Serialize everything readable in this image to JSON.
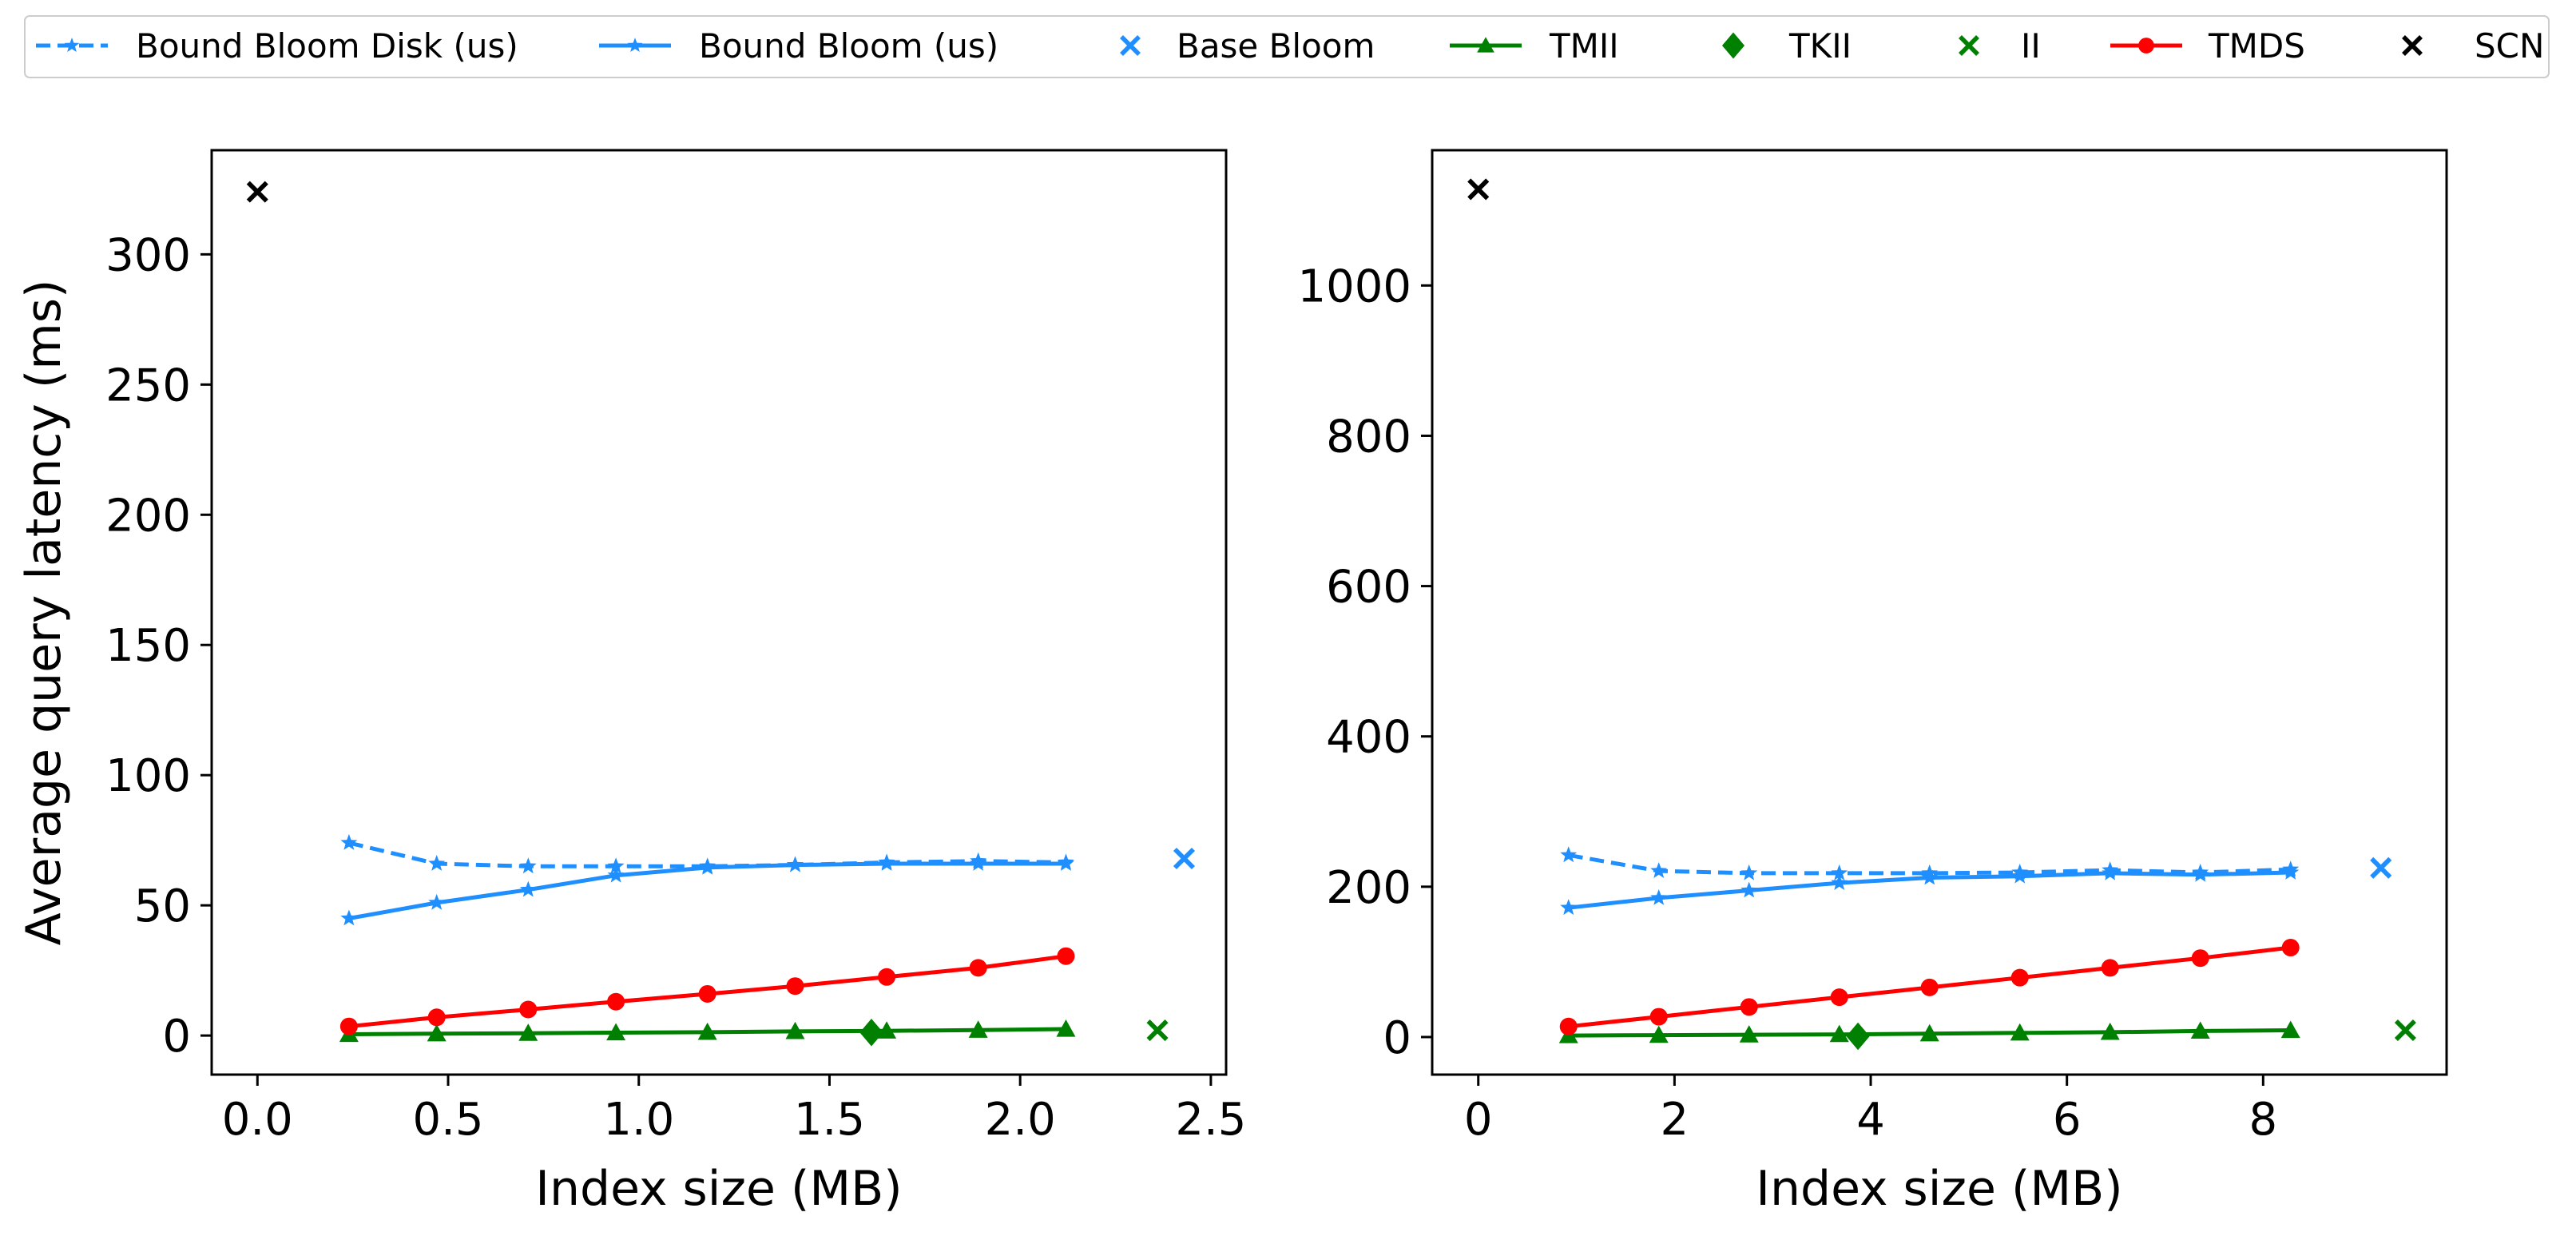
{
  "legend": [
    {
      "label": "Bound Bloom Disk (us)",
      "color": "#1f8fff",
      "dash": true,
      "marker": "star"
    },
    {
      "label": "Bound Bloom (us)",
      "color": "#1f8fff",
      "dash": false,
      "marker": "star"
    },
    {
      "label": "Base Bloom",
      "color": "#1f8fff",
      "dash": null,
      "marker": "x"
    },
    {
      "label": "TMII",
      "color": "#008000",
      "dash": false,
      "marker": "triangle"
    },
    {
      "label": "TKII",
      "color": "#008000",
      "dash": null,
      "marker": "diamond"
    },
    {
      "label": "II",
      "color": "#008000",
      "dash": null,
      "marker": "x"
    },
    {
      "label": "TMDS",
      "color": "#ff0000",
      "dash": false,
      "marker": "circle"
    },
    {
      "label": "SCN",
      "color": "#000000",
      "dash": null,
      "marker": "x"
    }
  ],
  "chart_data": [
    {
      "type": "line",
      "xlabel": "Index size (MB)",
      "ylabel": "Average query latency (ms)",
      "xlim": [
        -0.12,
        2.54
      ],
      "ylim": [
        -15,
        340
      ],
      "xticks": [
        0.0,
        0.5,
        1.0,
        1.5,
        2.0,
        2.5
      ],
      "xtick_labels": [
        "0.0",
        "0.5",
        "1.0",
        "1.5",
        "2.0",
        "2.5"
      ],
      "yticks": [
        0,
        50,
        100,
        150,
        200,
        250,
        300
      ],
      "ytick_labels": [
        "0",
        "50",
        "100",
        "150",
        "200",
        "250",
        "300"
      ],
      "series": [
        {
          "name": "Bound Bloom Disk (us)",
          "style": "dashed",
          "marker": "star",
          "color": "#1f8fff",
          "x": [
            0.24,
            0.47,
            0.71,
            0.94,
            1.18,
            1.41,
            1.65,
            1.89,
            2.12
          ],
          "y": [
            74,
            66,
            65,
            65,
            65,
            65.5,
            66.5,
            67,
            66.5
          ]
        },
        {
          "name": "Bound Bloom (us)",
          "style": "solid",
          "marker": "star",
          "color": "#1f8fff",
          "x": [
            0.24,
            0.47,
            0.71,
            0.94,
            1.18,
            1.41,
            1.65,
            1.89,
            2.12
          ],
          "y": [
            45,
            51,
            56,
            61.5,
            64.5,
            65.5,
            66,
            66,
            66
          ]
        },
        {
          "name": "Base Bloom",
          "style": "none",
          "marker": "x",
          "color": "#1f8fff",
          "x": [
            2.43
          ],
          "y": [
            68
          ]
        },
        {
          "name": "TMII",
          "style": "solid",
          "marker": "triangle",
          "color": "#008000",
          "x": [
            0.24,
            0.47,
            0.71,
            0.94,
            1.18,
            1.41,
            1.65,
            1.89,
            2.12
          ],
          "y": [
            0.5,
            0.7,
            0.9,
            1.1,
            1.3,
            1.6,
            1.8,
            2.1,
            2.5
          ]
        },
        {
          "name": "TKII",
          "style": "none",
          "marker": "diamond",
          "color": "#008000",
          "x": [
            1.61
          ],
          "y": [
            1.2
          ]
        },
        {
          "name": "II",
          "style": "none",
          "marker": "x",
          "color": "#008000",
          "x": [
            2.36
          ],
          "y": [
            2
          ]
        },
        {
          "name": "TMDS",
          "style": "solid",
          "marker": "circle",
          "color": "#ff0000",
          "x": [
            0.24,
            0.47,
            0.71,
            0.94,
            1.18,
            1.41,
            1.65,
            1.89,
            2.12
          ],
          "y": [
            3.5,
            7,
            10,
            13,
            16,
            19,
            22.5,
            26,
            30.5
          ]
        },
        {
          "name": "SCN",
          "style": "none",
          "marker": "x",
          "color": "#000000",
          "x": [
            0.0
          ],
          "y": [
            324
          ]
        }
      ]
    },
    {
      "type": "line",
      "xlabel": "Index size (MB)",
      "ylabel": "",
      "xlim": [
        -0.47,
        9.87
      ],
      "ylim": [
        -50,
        1180
      ],
      "xticks": [
        0,
        2,
        4,
        6,
        8
      ],
      "xtick_labels": [
        "0",
        "2",
        "4",
        "6",
        "8"
      ],
      "yticks": [
        0,
        200,
        400,
        600,
        800,
        1000
      ],
      "ytick_labels": [
        "0",
        "200",
        "400",
        "600",
        "800",
        "1000"
      ],
      "series": [
        {
          "name": "Bound Bloom Disk (us)",
          "style": "dashed",
          "marker": "star",
          "color": "#1f8fff",
          "x": [
            0.92,
            1.84,
            2.76,
            3.68,
            4.6,
            5.52,
            6.44,
            7.36,
            8.28
          ],
          "y": [
            242,
            221,
            218,
            218,
            218,
            219,
            222,
            219,
            223
          ]
        },
        {
          "name": "Bound Bloom (us)",
          "style": "solid",
          "marker": "star",
          "color": "#1f8fff",
          "x": [
            0.92,
            1.84,
            2.76,
            3.68,
            4.6,
            5.52,
            6.44,
            7.36,
            8.28
          ],
          "y": [
            172,
            185,
            195,
            205,
            212,
            214,
            218,
            216,
            219
          ]
        },
        {
          "name": "Base Bloom",
          "style": "none",
          "marker": "x",
          "color": "#1f8fff",
          "x": [
            9.2
          ],
          "y": [
            225
          ]
        },
        {
          "name": "TMII",
          "style": "solid",
          "marker": "triangle",
          "color": "#008000",
          "x": [
            0.92,
            1.84,
            2.76,
            3.68,
            4.6,
            5.52,
            6.44,
            7.36,
            8.28
          ],
          "y": [
            2,
            2.5,
            3,
            3.5,
            4.5,
            5.5,
            6.5,
            8,
            9
          ]
        },
        {
          "name": "TKII",
          "style": "none",
          "marker": "diamond",
          "color": "#008000",
          "x": [
            3.87
          ],
          "y": [
            1
          ]
        },
        {
          "name": "II",
          "style": "none",
          "marker": "x",
          "color": "#008000",
          "x": [
            9.45
          ],
          "y": [
            9
          ]
        },
        {
          "name": "TMDS",
          "style": "solid",
          "marker": "circle",
          "color": "#ff0000",
          "x": [
            0.92,
            1.84,
            2.76,
            3.68,
            4.6,
            5.52,
            6.44,
            7.36,
            8.28
          ],
          "y": [
            14,
            27,
            40,
            53,
            66,
            79,
            92,
            105,
            119
          ]
        },
        {
          "name": "SCN",
          "style": "none",
          "marker": "x",
          "color": "#000000",
          "x": [
            0.0
          ],
          "y": [
            1128
          ]
        }
      ]
    }
  ]
}
